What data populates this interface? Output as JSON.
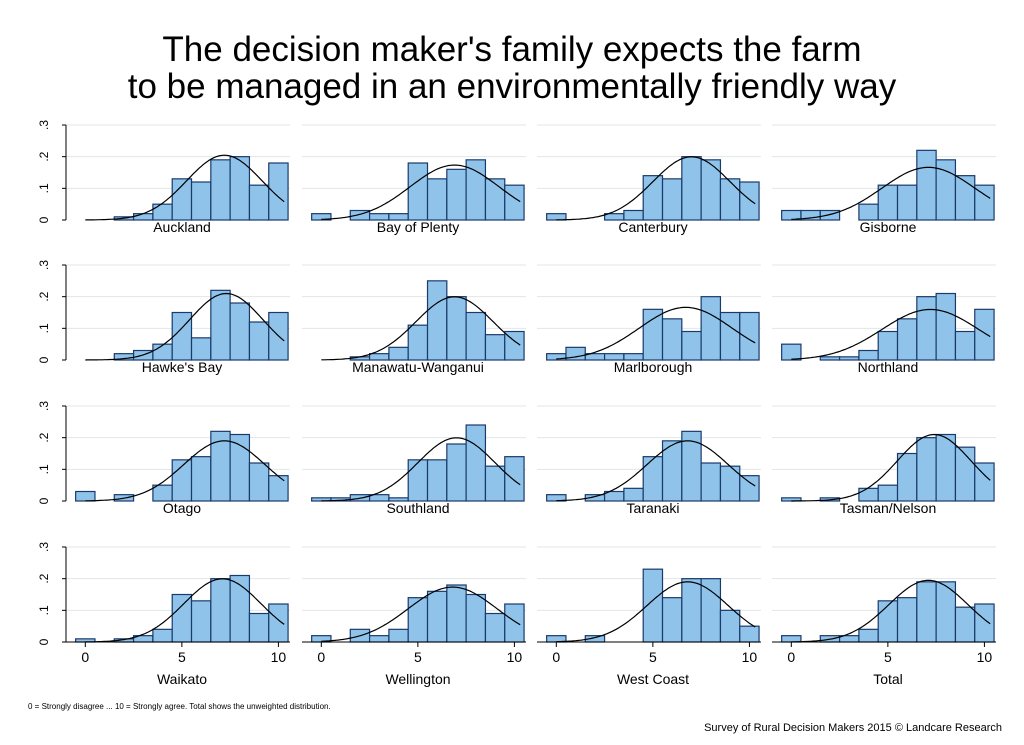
{
  "chart_data": {
    "type": "histogram",
    "title_lines": [
      "The decision maker's family expects the farm",
      "to be managed in an environmentally friendly way"
    ],
    "note": "0 = Strongly disagree ... 10 = Strongly agree. Total shows the unweighted distribution.",
    "credit": "Survey of Rural Decision Makers 2015 © Landcare Research",
    "x_bins": [
      0,
      1,
      2,
      3,
      4,
      5,
      6,
      7,
      8,
      9,
      10
    ],
    "x_ticks": [
      "0",
      "5",
      "10"
    ],
    "y_ticks": [
      "0",
      ".1",
      ".2",
      ".3"
    ],
    "ylim": [
      0,
      0.3
    ],
    "xlim": [
      -1,
      10.6
    ],
    "overlay": "normal density curve",
    "colors": {
      "bar_fill": "#8fc3ea",
      "bar_stroke": "#1a3a6b",
      "curve": "#000000",
      "grid": "#e0e6ea"
    },
    "panels": [
      {
        "name": "Auckland",
        "mean": 7.2,
        "sd": 1.95,
        "values": [
          0.0,
          0.0,
          0.01,
          0.02,
          0.05,
          0.13,
          0.12,
          0.19,
          0.2,
          0.11,
          0.18
        ]
      },
      {
        "name": "Bay of Plenty",
        "mean": 6.9,
        "sd": 2.3,
        "values": [
          0.02,
          0.0,
          0.03,
          0.02,
          0.02,
          0.18,
          0.13,
          0.16,
          0.19,
          0.13,
          0.11
        ]
      },
      {
        "name": "Canterbury",
        "mean": 7.0,
        "sd": 2.0,
        "values": [
          0.02,
          0.0,
          0.0,
          0.02,
          0.03,
          0.14,
          0.13,
          0.2,
          0.19,
          0.13,
          0.12
        ]
      },
      {
        "name": "Gisborne",
        "mean": 7.1,
        "sd": 2.4,
        "values": [
          0.03,
          0.03,
          0.03,
          0.0,
          0.05,
          0.11,
          0.11,
          0.22,
          0.19,
          0.14,
          0.11
        ]
      },
      {
        "name": "Hawke's Bay",
        "mean": 7.3,
        "sd": 1.9,
        "values": [
          0.0,
          0.0,
          0.02,
          0.03,
          0.05,
          0.15,
          0.07,
          0.22,
          0.18,
          0.12,
          0.15
        ]
      },
      {
        "name": "Manawatu-Wanganui",
        "mean": 6.9,
        "sd": 2.0,
        "values": [
          0.0,
          0.0,
          0.01,
          0.02,
          0.04,
          0.11,
          0.25,
          0.2,
          0.15,
          0.08,
          0.09
        ]
      },
      {
        "name": "Marlborough",
        "mean": 6.7,
        "sd": 2.4,
        "values": [
          0.02,
          0.04,
          0.02,
          0.02,
          0.02,
          0.16,
          0.13,
          0.09,
          0.2,
          0.15,
          0.15
        ]
      },
      {
        "name": "Northland",
        "mean": 7.2,
        "sd": 2.5,
        "values": [
          0.05,
          0.0,
          0.01,
          0.01,
          0.03,
          0.09,
          0.13,
          0.2,
          0.21,
          0.09,
          0.16
        ]
      },
      {
        "name": "Otago",
        "mean": 7.2,
        "sd": 2.1,
        "values": [
          0.03,
          0.0,
          0.02,
          0.0,
          0.05,
          0.13,
          0.14,
          0.22,
          0.21,
          0.12,
          0.08
        ]
      },
      {
        "name": "Southland",
        "mean": 7.0,
        "sd": 2.0,
        "values": [
          0.01,
          0.01,
          0.02,
          0.02,
          0.01,
          0.13,
          0.13,
          0.18,
          0.24,
          0.11,
          0.14
        ]
      },
      {
        "name": "Taranaki",
        "mean": 6.8,
        "sd": 2.1,
        "values": [
          0.02,
          0.0,
          0.02,
          0.03,
          0.04,
          0.14,
          0.19,
          0.22,
          0.12,
          0.11,
          0.08
        ]
      },
      {
        "name": "Tasman/Nelson",
        "mean": 7.4,
        "sd": 1.9,
        "values": [
          0.01,
          0.0,
          0.01,
          0.0,
          0.04,
          0.05,
          0.15,
          0.2,
          0.21,
          0.17,
          0.12
        ]
      },
      {
        "name": "Waikato",
        "mean": 7.1,
        "sd": 2.0,
        "values": [
          0.01,
          0.0,
          0.01,
          0.02,
          0.04,
          0.15,
          0.13,
          0.2,
          0.21,
          0.09,
          0.12
        ]
      },
      {
        "name": "Wellington",
        "mean": 6.8,
        "sd": 2.3,
        "values": [
          0.02,
          0.0,
          0.04,
          0.02,
          0.04,
          0.14,
          0.16,
          0.18,
          0.15,
          0.09,
          0.12
        ]
      },
      {
        "name": "West Coast",
        "mean": 6.8,
        "sd": 2.1,
        "values": [
          0.02,
          0.0,
          0.02,
          0.0,
          0.0,
          0.23,
          0.14,
          0.2,
          0.2,
          0.1,
          0.05
        ]
      },
      {
        "name": "Total",
        "mean": 7.1,
        "sd": 2.05,
        "values": [
          0.02,
          0.0,
          0.02,
          0.02,
          0.04,
          0.13,
          0.14,
          0.19,
          0.19,
          0.11,
          0.12
        ]
      }
    ]
  }
}
